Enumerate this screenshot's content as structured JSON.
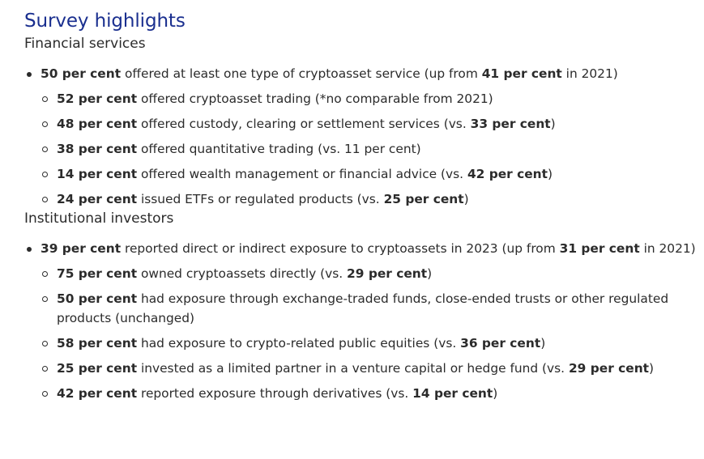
{
  "title": "Survey highlights",
  "sections": [
    {
      "heading": "Financial services",
      "top": {
        "bold": "50 per cent",
        "text": " offered at least one type of cryptoasset service (up from ",
        "bold2": "41 per cent",
        "text2": " in 2021)"
      },
      "items": [
        {
          "bold": "52 per cent",
          "text": " offered cryptoasset trading (*no comparable from 2021)",
          "bold2": "",
          "text2": ""
        },
        {
          "bold": "48 per cent",
          "text": " offered custody, clearing or settlement services (vs. ",
          "bold2": "33 per cent",
          "text2": ")"
        },
        {
          "bold": "38 per cent",
          "text": " offered quantitative trading (vs. 11 per cent)",
          "bold2": "",
          "text2": ""
        },
        {
          "bold": "14 per cent",
          "text": " offered wealth management or financial advice (vs. ",
          "bold2": "42 per cent",
          "text2": ")"
        },
        {
          "bold": "24 per cent",
          "text": " issued ETFs or regulated products (vs. ",
          "bold2": "25 per cent",
          "text2": ")"
        }
      ]
    },
    {
      "heading": "Institutional investors",
      "top": {
        "bold": "39 per cent",
        "text": " reported direct or indirect exposure to cryptoassets in 2023 (up from ",
        "bold2": "31 per cent",
        "text2": " in 2021)"
      },
      "items": [
        {
          "bold": "75 per cent",
          "text": " owned cryptoassets directly (vs. ",
          "bold2": "29 per cent",
          "text2": ")"
        },
        {
          "bold": "50 per cent",
          "text": " had exposure through exchange-traded funds, close-ended trusts or other regulated products (unchanged)",
          "bold2": "",
          "text2": ""
        },
        {
          "bold": "58 per cent",
          "text": " had exposure to crypto-related public equities (vs. ",
          "bold2": "36 per cent",
          "text2": ")"
        },
        {
          "bold": "25 per cent",
          "text": " invested as a limited partner in a venture capital or hedge fund (vs. ",
          "bold2": "29 per cent",
          "text2": ")"
        },
        {
          "bold": "42 per cent",
          "text": " reported exposure through derivatives (vs. ",
          "bold2": "14 per cent",
          "text2": ")"
        }
      ]
    }
  ]
}
